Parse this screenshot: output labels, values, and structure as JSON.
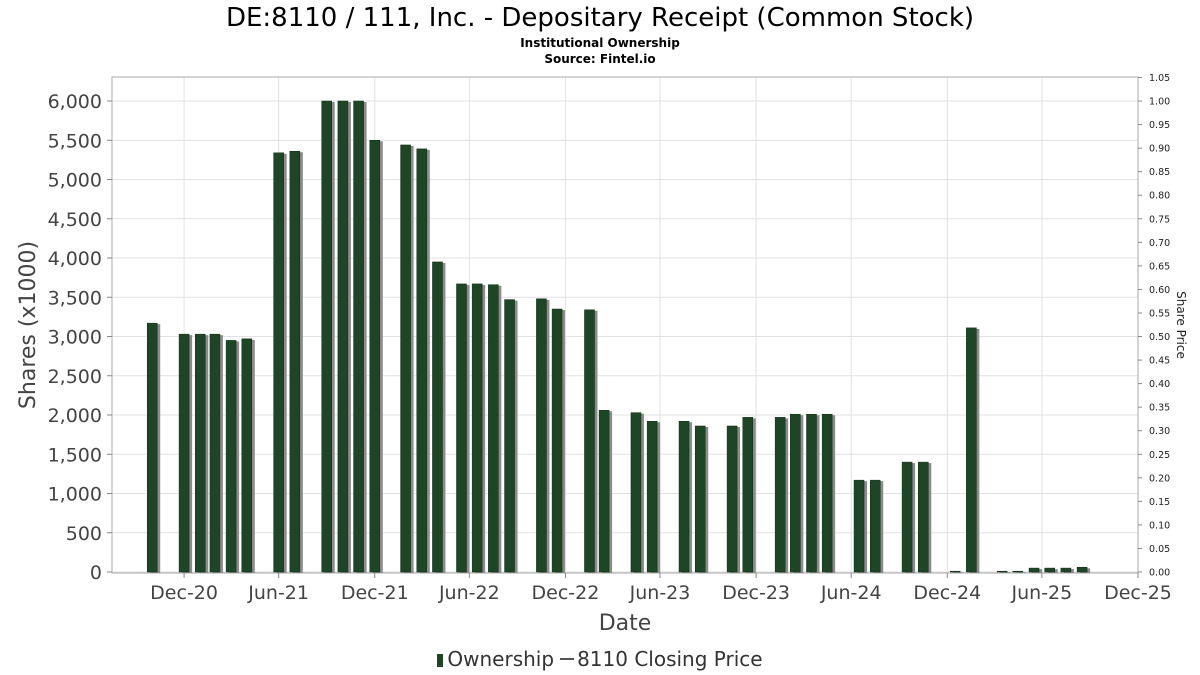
{
  "chart_data": {
    "type": "bar",
    "title": "DE:8110 / 111, Inc. - Depositary Receipt (Common Stock)",
    "subtitle_lines": [
      "Institutional Ownership",
      "Source: Fintel.io"
    ],
    "xlabel": "Date",
    "ylabel": "Shares (x1000)",
    "y2label": "Share Price",
    "ylim": [
      0,
      6300
    ],
    "y_ticks": [
      0,
      500,
      1000,
      1500,
      2000,
      2500,
      3000,
      3500,
      4000,
      4500,
      5000,
      5500,
      6000
    ],
    "y_tick_labels": [
      "0",
      "500",
      "1,000",
      "1,500",
      "2,000",
      "2,500",
      "3,000",
      "3,500",
      "4,000",
      "4,500",
      "5,000",
      "5,500",
      "6,000"
    ],
    "y2lim": [
      0,
      1.05
    ],
    "y2_tick_labels": [
      "0.00",
      "0.05",
      "0.10",
      "0.15",
      "0.20",
      "0.25",
      "0.30",
      "0.35",
      "0.40",
      "0.45",
      "0.50",
      "0.55",
      "0.60",
      "0.65",
      "0.70",
      "0.75",
      "0.80",
      "0.85",
      "0.90",
      "0.95",
      "1.00",
      "1.05"
    ],
    "x_range": [
      "2020-08-15",
      "2025-12-31"
    ],
    "x_ticks": [
      {
        "label": "Dec-20",
        "date": "2020-12-31"
      },
      {
        "label": "Jun-21",
        "date": "2021-06-30"
      },
      {
        "label": "Dec-21",
        "date": "2021-12-31"
      },
      {
        "label": "Jun-22",
        "date": "2022-06-30"
      },
      {
        "label": "Dec-22",
        "date": "2022-12-31"
      },
      {
        "label": "Jun-23",
        "date": "2023-06-30"
      },
      {
        "label": "Dec-23",
        "date": "2023-12-31"
      },
      {
        "label": "Jun-24",
        "date": "2024-06-30"
      },
      {
        "label": "Dec-24",
        "date": "2024-12-31"
      },
      {
        "label": "Jun-25",
        "date": "2025-06-30"
      },
      {
        "label": "Dec-25",
        "date": "2025-12-31"
      }
    ],
    "grid": true,
    "legend_position": "bottom",
    "series": [
      {
        "name": "Ownership",
        "color": "#1e4626",
        "points": [
          {
            "x": "2020-10-31",
            "y": 3170
          },
          {
            "x": "2020-12-31",
            "y": 3030
          },
          {
            "x": "2021-01-31",
            "y": 3030
          },
          {
            "x": "2021-02-28",
            "y": 3030
          },
          {
            "x": "2021-03-31",
            "y": 2950
          },
          {
            "x": "2021-04-30",
            "y": 2970
          },
          {
            "x": "2021-06-30",
            "y": 5340
          },
          {
            "x": "2021-07-31",
            "y": 5360
          },
          {
            "x": "2021-09-30",
            "y": 6000
          },
          {
            "x": "2021-10-31",
            "y": 6000
          },
          {
            "x": "2021-11-30",
            "y": 6000
          },
          {
            "x": "2021-12-31",
            "y": 5500
          },
          {
            "x": "2022-02-28",
            "y": 5440
          },
          {
            "x": "2022-03-31",
            "y": 5390
          },
          {
            "x": "2022-04-30",
            "y": 3950
          },
          {
            "x": "2022-06-15",
            "y": 3670
          },
          {
            "x": "2022-07-15",
            "y": 3670
          },
          {
            "x": "2022-08-15",
            "y": 3660
          },
          {
            "x": "2022-09-15",
            "y": 3470
          },
          {
            "x": "2022-11-15",
            "y": 3480
          },
          {
            "x": "2022-12-15",
            "y": 3350
          },
          {
            "x": "2023-02-15",
            "y": 3340
          },
          {
            "x": "2023-03-15",
            "y": 2060
          },
          {
            "x": "2023-05-15",
            "y": 2030
          },
          {
            "x": "2023-06-15",
            "y": 1920
          },
          {
            "x": "2023-08-15",
            "y": 1920
          },
          {
            "x": "2023-09-15",
            "y": 1860
          },
          {
            "x": "2023-11-15",
            "y": 1860
          },
          {
            "x": "2023-12-15",
            "y": 1970
          },
          {
            "x": "2024-02-15",
            "y": 1970
          },
          {
            "x": "2024-03-15",
            "y": 2010
          },
          {
            "x": "2024-04-15",
            "y": 2010
          },
          {
            "x": "2024-05-15",
            "y": 2010
          },
          {
            "x": "2024-07-15",
            "y": 1170
          },
          {
            "x": "2024-08-15",
            "y": 1170
          },
          {
            "x": "2024-10-15",
            "y": 1400
          },
          {
            "x": "2024-11-15",
            "y": 1400
          },
          {
            "x": "2025-01-15",
            "y": 5
          },
          {
            "x": "2025-02-15",
            "y": 3110
          },
          {
            "x": "2025-04-15",
            "y": 8
          },
          {
            "x": "2025-05-15",
            "y": 8
          },
          {
            "x": "2025-06-15",
            "y": 50
          },
          {
            "x": "2025-07-15",
            "y": 50
          },
          {
            "x": "2025-08-15",
            "y": 50
          },
          {
            "x": "2025-09-15",
            "y": 60
          }
        ]
      },
      {
        "name": "8110 Closing Price",
        "color": "#555555",
        "points": []
      }
    ]
  }
}
